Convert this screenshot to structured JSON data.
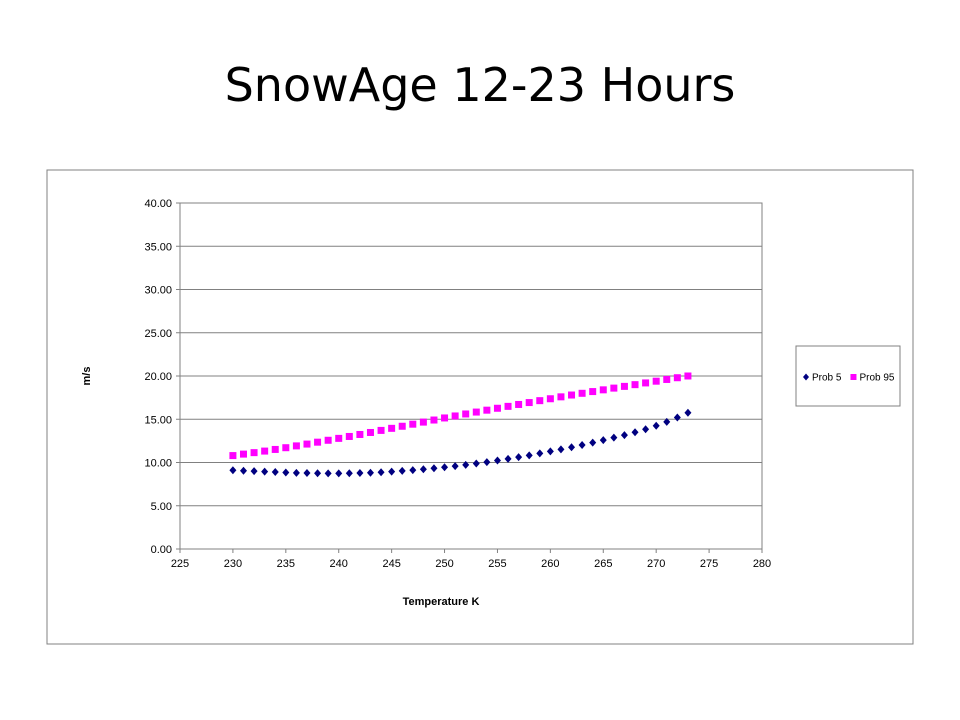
{
  "slide": {
    "title": "SnowAge 12-23 Hours"
  },
  "chart_data": {
    "type": "scatter",
    "title": "",
    "xlabel": "Temperature K",
    "ylabel": "m/s",
    "xlim": [
      225,
      280
    ],
    "ylim": [
      0,
      40
    ],
    "x_ticks": [
      "225",
      "230",
      "235",
      "240",
      "245",
      "250",
      "255",
      "260",
      "265",
      "270",
      "275",
      "280"
    ],
    "y_ticks": [
      "0.00",
      "5.00",
      "10.00",
      "15.00",
      "20.00",
      "25.00",
      "30.00",
      "35.00",
      "40.00"
    ],
    "grid": "horizontal",
    "legend_position": "right",
    "x": [
      230,
      231,
      232,
      233,
      234,
      235,
      236,
      237,
      238,
      239,
      240,
      241,
      242,
      243,
      244,
      245,
      246,
      247,
      248,
      249,
      250,
      251,
      252,
      253,
      254,
      255,
      256,
      257,
      258,
      259,
      260,
      261,
      262,
      263,
      264,
      265,
      266,
      267,
      268,
      269,
      270,
      271,
      272,
      273
    ],
    "series": [
      {
        "name": "Prob 5",
        "color": "#000080",
        "marker": "diamond",
        "values": [
          9.1,
          9.05,
          9.0,
          8.95,
          8.9,
          8.85,
          8.8,
          8.78,
          8.76,
          8.75,
          8.75,
          8.76,
          8.78,
          8.82,
          8.88,
          8.95,
          9.03,
          9.12,
          9.22,
          9.33,
          9.45,
          9.58,
          9.72,
          9.88,
          10.05,
          10.23,
          10.42,
          10.62,
          10.83,
          11.05,
          11.28,
          11.52,
          11.77,
          12.03,
          12.3,
          12.58,
          12.87,
          13.17,
          13.5,
          13.85,
          14.25,
          14.7,
          15.2,
          15.75
        ]
      },
      {
        "name": "Prob 95",
        "color": "#ff00ff",
        "marker": "square",
        "values": [
          10.8,
          10.97,
          11.14,
          11.32,
          11.51,
          11.71,
          11.92,
          12.13,
          12.35,
          12.57,
          12.79,
          13.01,
          13.24,
          13.47,
          13.71,
          13.95,
          14.19,
          14.43,
          14.67,
          14.91,
          15.15,
          15.38,
          15.61,
          15.83,
          16.05,
          16.27,
          16.49,
          16.71,
          16.93,
          17.15,
          17.37,
          17.59,
          17.8,
          18.0,
          18.2,
          18.4,
          18.6,
          18.8,
          19.0,
          19.2,
          19.4,
          19.6,
          19.8,
          20.0
        ]
      }
    ]
  }
}
